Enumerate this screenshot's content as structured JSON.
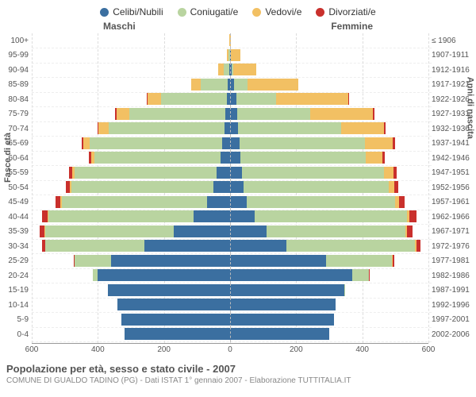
{
  "legend": [
    {
      "label": "Celibi/Nubili",
      "color": "#3b6fa0"
    },
    {
      "label": "Coniugati/e",
      "color": "#b9d4a0"
    },
    {
      "label": "Vedovi/e",
      "color": "#f2c063"
    },
    {
      "label": "Divorziati/e",
      "color": "#c9302c"
    }
  ],
  "gender": {
    "male": "Maschi",
    "female": "Femmine"
  },
  "y_left_title": "Fasce di età",
  "y_right_title": "Anni di nascita",
  "x_axis": {
    "min": -600,
    "max": 600,
    "ticks": [
      -600,
      -400,
      -200,
      0,
      200,
      400,
      600
    ]
  },
  "caption": {
    "line1": "Popolazione per età, sesso e stato civile - 2007",
    "line2": "COMUNE DI GUALDO TADINO (PG) - Dati ISTAT 1° gennaio 2007 - Elaborazione TUTTITALIA.IT"
  },
  "rows": [
    {
      "age": "100+",
      "birth": "≤ 1906",
      "m": {
        "c": 0,
        "g": 0,
        "v": 2,
        "d": 0
      },
      "f": {
        "c": 0,
        "g": 0,
        "v": 2,
        "d": 0
      }
    },
    {
      "age": "95-99",
      "birth": "1907-1911",
      "m": {
        "c": 1,
        "g": 3,
        "v": 6,
        "d": 0
      },
      "f": {
        "c": 2,
        "g": 1,
        "v": 28,
        "d": 0
      }
    },
    {
      "age": "90-94",
      "birth": "1912-1916",
      "m": {
        "c": 2,
        "g": 17,
        "v": 17,
        "d": 0
      },
      "f": {
        "c": 4,
        "g": 5,
        "v": 70,
        "d": 0
      }
    },
    {
      "age": "85-89",
      "birth": "1917-1921",
      "m": {
        "c": 8,
        "g": 80,
        "v": 30,
        "d": 0
      },
      "f": {
        "c": 12,
        "g": 40,
        "v": 155,
        "d": 0
      }
    },
    {
      "age": "80-84",
      "birth": "1922-1926",
      "m": {
        "c": 10,
        "g": 200,
        "v": 40,
        "d": 2
      },
      "f": {
        "c": 18,
        "g": 120,
        "v": 220,
        "d": 2
      }
    },
    {
      "age": "75-79",
      "birth": "1927-1931",
      "m": {
        "c": 14,
        "g": 290,
        "v": 40,
        "d": 3
      },
      "f": {
        "c": 22,
        "g": 220,
        "v": 190,
        "d": 4
      }
    },
    {
      "age": "70-74",
      "birth": "1932-1936",
      "m": {
        "c": 18,
        "g": 350,
        "v": 30,
        "d": 4
      },
      "f": {
        "c": 25,
        "g": 310,
        "v": 130,
        "d": 6
      }
    },
    {
      "age": "65-69",
      "birth": "1937-1941",
      "m": {
        "c": 25,
        "g": 400,
        "v": 18,
        "d": 6
      },
      "f": {
        "c": 28,
        "g": 380,
        "v": 85,
        "d": 7
      }
    },
    {
      "age": "60-64",
      "birth": "1942-1946",
      "m": {
        "c": 30,
        "g": 380,
        "v": 10,
        "d": 7
      },
      "f": {
        "c": 30,
        "g": 380,
        "v": 50,
        "d": 8
      }
    },
    {
      "age": "55-59",
      "birth": "1947-1951",
      "m": {
        "c": 40,
        "g": 430,
        "v": 8,
        "d": 10
      },
      "f": {
        "c": 35,
        "g": 430,
        "v": 30,
        "d": 10
      }
    },
    {
      "age": "50-54",
      "birth": "1952-1956",
      "m": {
        "c": 50,
        "g": 430,
        "v": 5,
        "d": 12
      },
      "f": {
        "c": 40,
        "g": 440,
        "v": 18,
        "d": 12
      }
    },
    {
      "age": "45-49",
      "birth": "1957-1961",
      "m": {
        "c": 70,
        "g": 440,
        "v": 3,
        "d": 15
      },
      "f": {
        "c": 50,
        "g": 450,
        "v": 12,
        "d": 16
      }
    },
    {
      "age": "40-44",
      "birth": "1962-1966",
      "m": {
        "c": 110,
        "g": 440,
        "v": 2,
        "d": 18
      },
      "f": {
        "c": 75,
        "g": 460,
        "v": 8,
        "d": 20
      }
    },
    {
      "age": "35-39",
      "birth": "1967-1971",
      "m": {
        "c": 170,
        "g": 390,
        "v": 1,
        "d": 14
      },
      "f": {
        "c": 110,
        "g": 420,
        "v": 5,
        "d": 18
      }
    },
    {
      "age": "30-34",
      "birth": "1972-1976",
      "m": {
        "c": 260,
        "g": 300,
        "v": 0,
        "d": 10
      },
      "f": {
        "c": 170,
        "g": 390,
        "v": 3,
        "d": 14
      }
    },
    {
      "age": "25-29",
      "birth": "1977-1981",
      "m": {
        "c": 360,
        "g": 110,
        "v": 0,
        "d": 4
      },
      "f": {
        "c": 290,
        "g": 200,
        "v": 1,
        "d": 6
      }
    },
    {
      "age": "20-24",
      "birth": "1982-1986",
      "m": {
        "c": 400,
        "g": 15,
        "v": 0,
        "d": 1
      },
      "f": {
        "c": 370,
        "g": 50,
        "v": 0,
        "d": 2
      }
    },
    {
      "age": "15-19",
      "birth": "1987-1991",
      "m": {
        "c": 370,
        "g": 0,
        "v": 0,
        "d": 0
      },
      "f": {
        "c": 345,
        "g": 2,
        "v": 0,
        "d": 0
      }
    },
    {
      "age": "10-14",
      "birth": "1992-1996",
      "m": {
        "c": 340,
        "g": 0,
        "v": 0,
        "d": 0
      },
      "f": {
        "c": 320,
        "g": 0,
        "v": 0,
        "d": 0
      }
    },
    {
      "age": "5-9",
      "birth": "1997-2001",
      "m": {
        "c": 330,
        "g": 0,
        "v": 0,
        "d": 0
      },
      "f": {
        "c": 315,
        "g": 0,
        "v": 0,
        "d": 0
      }
    },
    {
      "age": "0-4",
      "birth": "2002-2006",
      "m": {
        "c": 320,
        "g": 0,
        "v": 0,
        "d": 0
      },
      "f": {
        "c": 300,
        "g": 0,
        "v": 0,
        "d": 0
      }
    }
  ]
}
